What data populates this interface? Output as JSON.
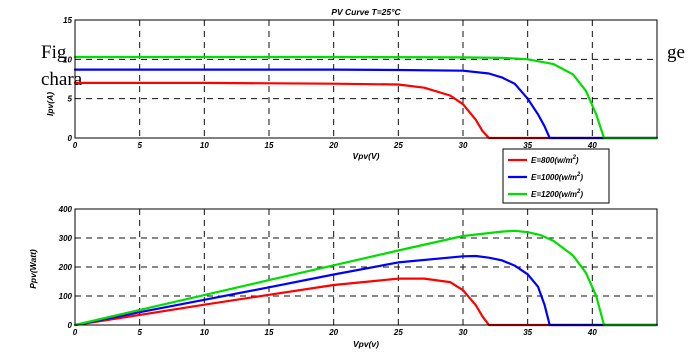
{
  "caption": {
    "left_line1": "Fig",
    "left_line2": "chara",
    "right_line1": "ge"
  },
  "chart_data": [
    {
      "type": "line",
      "title": "PV Curve T=25°C",
      "xlabel": "Vpv(V)",
      "ylabel": "Ipv(A)",
      "xlim": [
        0,
        45
      ],
      "ylim": [
        0,
        15
      ],
      "xticks": [
        0,
        5,
        10,
        15,
        20,
        25,
        30,
        35,
        40
      ],
      "yticks": [
        0,
        5,
        10,
        15
      ],
      "grid": true,
      "series": [
        {
          "name": "E=800(w/m2)",
          "color": "#ff0000",
          "x": [
            0,
            10,
            20,
            25,
            27,
            29,
            30,
            31,
            31.5,
            32,
            45
          ],
          "y": [
            7.0,
            7.0,
            6.9,
            6.8,
            6.4,
            5.4,
            4.3,
            2.3,
            0.9,
            0,
            0
          ]
        },
        {
          "name": "E=1000(w/m2)",
          "color": "#0000ff",
          "x": [
            0,
            10,
            20,
            25,
            30,
            32,
            33,
            34,
            35,
            35.8,
            36.3,
            36.7,
            45
          ],
          "y": [
            8.7,
            8.7,
            8.7,
            8.65,
            8.55,
            8.2,
            7.7,
            6.9,
            5.0,
            3.0,
            1.5,
            0,
            0
          ]
        },
        {
          "name": "E=1200(w/m2)",
          "color": "#00dd00",
          "x": [
            0,
            10,
            20,
            30,
            33,
            35,
            37,
            38.5,
            39.5,
            40.3,
            40.9,
            45
          ],
          "y": [
            10.3,
            10.3,
            10.3,
            10.25,
            10.2,
            10.0,
            9.4,
            8.1,
            6.0,
            3.0,
            0,
            0
          ]
        }
      ],
      "legend": {
        "placement": "right",
        "entries": [
          {
            "label": "E=800(w/m",
            "sup": "2",
            "tail": ")",
            "color": "#ff0000"
          },
          {
            "label": "E=1000(w/m",
            "sup": "2",
            "tail": ")",
            "color": "#0000ff"
          },
          {
            "label": "E=1200(w/m",
            "sup": "2",
            "tail": ")",
            "color": "#00dd00"
          }
        ]
      }
    },
    {
      "type": "line",
      "title": "",
      "xlabel": "Vpv(v)",
      "ylabel": "Ppv(Watt)",
      "xlim": [
        0,
        45
      ],
      "ylim": [
        0,
        400
      ],
      "xticks": [
        0,
        5,
        10,
        15,
        20,
        25,
        30,
        35,
        40
      ],
      "yticks": [
        0,
        100,
        200,
        300,
        400
      ],
      "grid": true,
      "series": [
        {
          "name": "E=800(w/m2)",
          "color": "#ff0000",
          "x": [
            0,
            5,
            10,
            15,
            20,
            25,
            27,
            29,
            30,
            31,
            31.5,
            32,
            45
          ],
          "y": [
            0,
            35,
            70,
            104,
            138,
            160,
            160,
            148,
            120,
            68,
            30,
            0,
            0
          ]
        },
        {
          "name": "E=1000(w/m2)",
          "color": "#0000ff",
          "x": [
            0,
            5,
            10,
            15,
            20,
            25,
            30,
            31,
            32,
            33,
            34,
            35,
            35.8,
            36.3,
            36.7,
            45
          ],
          "y": [
            0,
            44,
            87,
            130,
            174,
            216,
            237,
            238,
            232,
            223,
            205,
            175,
            132,
            70,
            0,
            0
          ]
        },
        {
          "name": "E=1200(w/m2)",
          "color": "#00dd00",
          "x": [
            0,
            5,
            10,
            15,
            20,
            25,
            30,
            33,
            34,
            35,
            36,
            37,
            38.5,
            39.5,
            40.3,
            40.9,
            45
          ],
          "y": [
            0,
            52,
            103,
            155,
            206,
            257,
            307,
            322,
            325,
            320,
            310,
            290,
            240,
            180,
            100,
            0,
            0
          ]
        }
      ]
    }
  ]
}
